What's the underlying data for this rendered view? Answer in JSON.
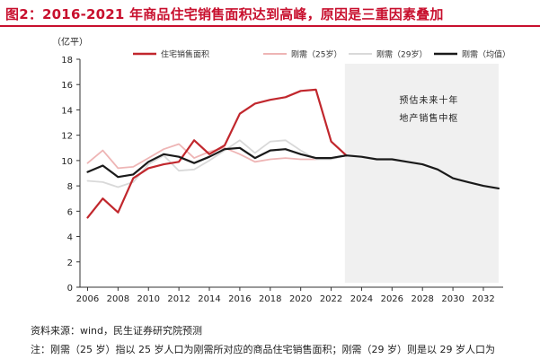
{
  "title": "图2：2016-2021 年商品住宅销售面积达到高峰，原因是三重因素叠加",
  "source": "资料来源：wind，民生证券研究院预测",
  "note": "注：刚需（25 岁）指以 25 岁人口为刚需所对应的商品住宅销售面积；刚需（29 岁）则是以 29 岁人口为",
  "colors": {
    "title": "#c8102e",
    "shade": "#f0f0f0"
  },
  "chart_data": {
    "type": "line",
    "ylabel": "（亿平）",
    "ylim": [
      0,
      18
    ],
    "yticks": [
      0,
      2,
      4,
      6,
      8,
      10,
      12,
      14,
      16,
      18
    ],
    "xlim": [
      2005.5,
      2033.3
    ],
    "xticks": [
      2006,
      2008,
      2010,
      2012,
      2014,
      2016,
      2018,
      2020,
      2022,
      2024,
      2026,
      2028,
      2030,
      2032
    ],
    "forecast_region": {
      "from": 2022.9,
      "to": 2033,
      "label_line1": "预估未来十年",
      "label_line2": "地产销售中枢"
    },
    "series": [
      {
        "name": "住宅销售面积",
        "color": "#c1272d",
        "width": 2.2,
        "x": [
          2006,
          2007,
          2008,
          2009,
          2010,
          2011,
          2012,
          2013,
          2014,
          2015,
          2016,
          2017,
          2018,
          2019,
          2020,
          2021,
          2022,
          2023
        ],
        "y": [
          5.5,
          7.0,
          5.9,
          8.6,
          9.4,
          9.7,
          9.9,
          11.6,
          10.5,
          11.2,
          13.7,
          14.5,
          14.8,
          15.0,
          15.5,
          15.6,
          11.5,
          10.4
        ]
      },
      {
        "name": "刚需（25岁）",
        "color": "#eeb5b5",
        "width": 1.8,
        "x": [
          2006,
          2007,
          2008,
          2009,
          2010,
          2011,
          2012,
          2013,
          2014,
          2015,
          2016,
          2017,
          2018,
          2019,
          2020,
          2021,
          2022,
          2023
        ],
        "y": [
          9.8,
          10.8,
          9.4,
          9.5,
          10.2,
          10.9,
          11.3,
          10.2,
          10.7,
          11.0,
          10.5,
          9.9,
          10.1,
          10.2,
          10.1,
          10.1,
          10.2,
          10.4
        ]
      },
      {
        "name": "刚需（29岁）",
        "color": "#d9d9d9",
        "width": 1.8,
        "x": [
          2006,
          2007,
          2008,
          2009,
          2010,
          2011,
          2012,
          2013,
          2014,
          2015,
          2016,
          2017,
          2018,
          2019,
          2020,
          2021,
          2022,
          2023
        ],
        "y": [
          8.4,
          8.3,
          7.9,
          8.3,
          9.7,
          10.4,
          9.2,
          9.3,
          10.0,
          10.8,
          11.6,
          10.6,
          11.5,
          11.6,
          10.8,
          10.1,
          10.1,
          10.4
        ]
      },
      {
        "name": "刚需（均值）",
        "color": "#1a1a1a",
        "width": 2.2,
        "x": [
          2006,
          2007,
          2008,
          2009,
          2010,
          2011,
          2012,
          2013,
          2014,
          2015,
          2016,
          2017,
          2018,
          2019,
          2020,
          2021,
          2022,
          2023,
          2024,
          2025,
          2026,
          2027,
          2028,
          2029,
          2030,
          2031,
          2032,
          2033
        ],
        "y": [
          9.1,
          9.6,
          8.7,
          8.9,
          9.9,
          10.5,
          10.3,
          9.8,
          10.3,
          10.9,
          11.0,
          10.2,
          10.8,
          10.9,
          10.5,
          10.2,
          10.2,
          10.4,
          10.3,
          10.1,
          10.1,
          9.9,
          9.7,
          9.3,
          8.6,
          8.3,
          8.0,
          7.8
        ]
      }
    ]
  }
}
